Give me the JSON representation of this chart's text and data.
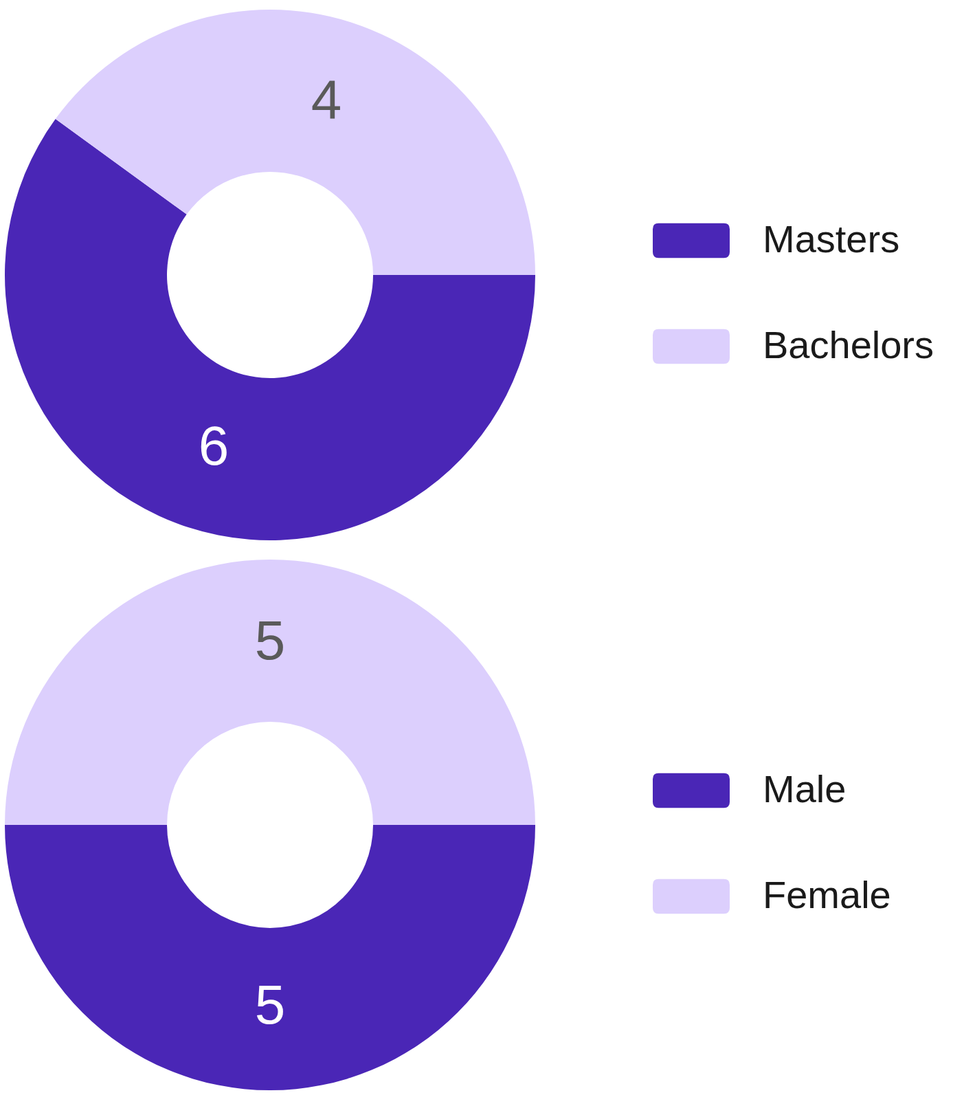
{
  "chart_data": [
    {
      "type": "donut",
      "categories": [
        "Masters",
        "Bachelors"
      ],
      "values": [
        6,
        4
      ],
      "colors": [
        "#4a26b6",
        "#dccffd"
      ],
      "data_labels": true,
      "legend": "right"
    },
    {
      "type": "donut",
      "categories": [
        "Male",
        "Female"
      ],
      "values": [
        5,
        5
      ],
      "colors": [
        "#4a26b6",
        "#dccffd"
      ],
      "data_labels": true,
      "legend": "right"
    }
  ]
}
